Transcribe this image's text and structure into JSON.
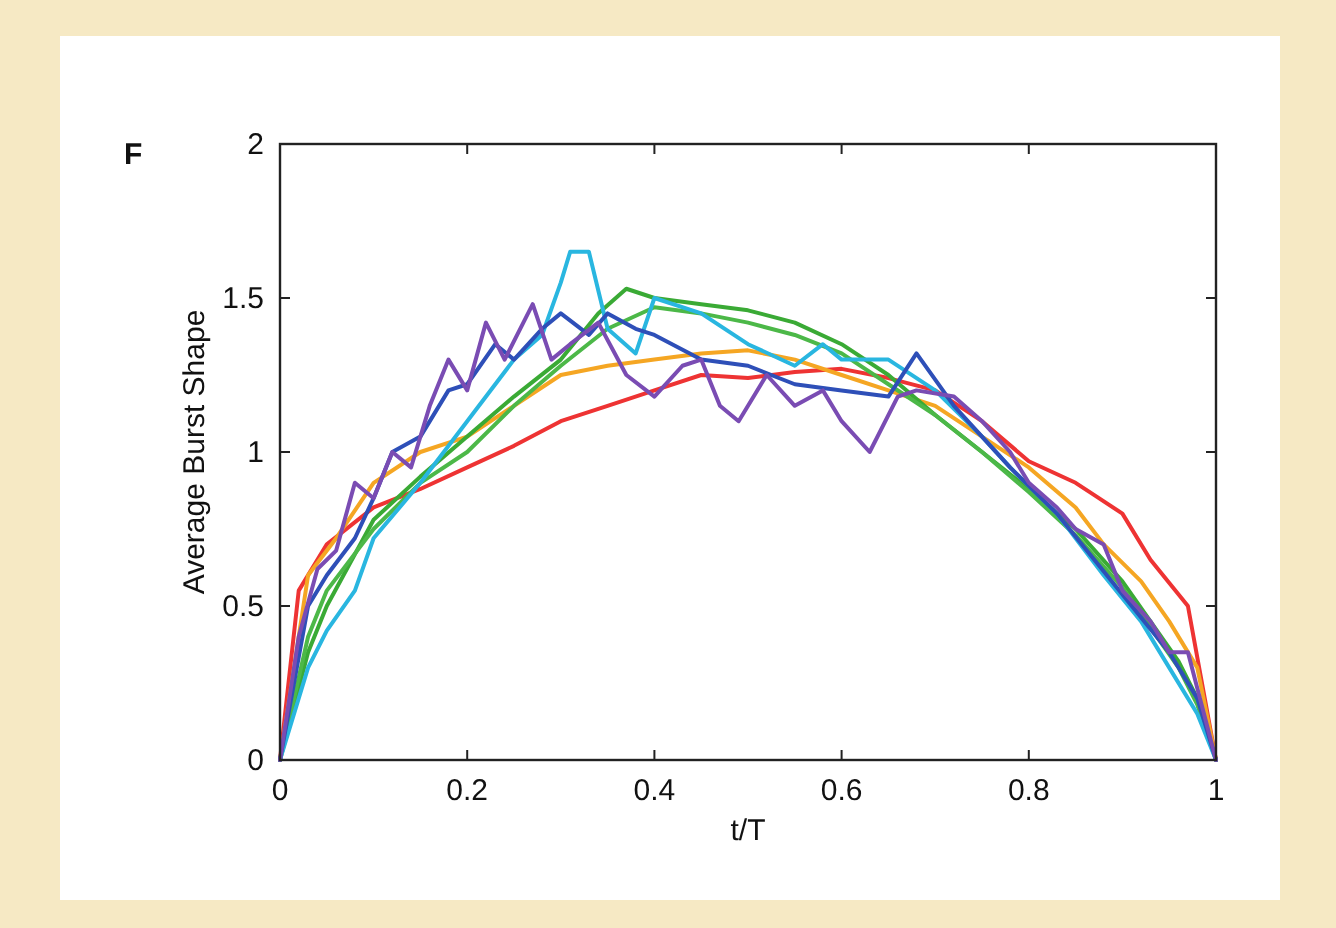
{
  "chart_data": {
    "type": "line",
    "title": "F",
    "xlabel": "t/T",
    "ylabel": "Average Burst Shape",
    "xlim": [
      0,
      1
    ],
    "xticks": [
      0,
      0.2,
      0.4,
      0.6,
      0.8,
      1
    ],
    "ylim": [
      0,
      2
    ],
    "yticks": [
      0,
      0.5,
      1,
      1.5,
      2
    ],
    "grid": false,
    "line_style": "solid",
    "marker": "none",
    "series": [
      {
        "color": "#ee3333",
        "x": [
          0,
          0.02,
          0.05,
          0.1,
          0.15,
          0.2,
          0.25,
          0.3,
          0.35,
          0.4,
          0.45,
          0.5,
          0.55,
          0.6,
          0.65,
          0.7,
          0.75,
          0.8,
          0.85,
          0.87,
          0.9,
          0.93,
          0.97,
          1
        ],
        "values": [
          0,
          0.55,
          0.7,
          0.82,
          0.88,
          0.95,
          1.02,
          1.1,
          1.15,
          1.2,
          1.25,
          1.24,
          1.26,
          1.27,
          1.24,
          1.2,
          1.1,
          0.97,
          0.9,
          0.86,
          0.8,
          0.65,
          0.5,
          0
        ]
      },
      {
        "color": "#f5a623",
        "x": [
          0,
          0.03,
          0.06,
          0.1,
          0.15,
          0.2,
          0.25,
          0.3,
          0.35,
          0.4,
          0.45,
          0.5,
          0.55,
          0.6,
          0.65,
          0.7,
          0.75,
          0.8,
          0.85,
          0.88,
          0.92,
          0.95,
          0.98,
          1
        ],
        "values": [
          0,
          0.6,
          0.72,
          0.9,
          1.0,
          1.05,
          1.15,
          1.25,
          1.28,
          1.3,
          1.32,
          1.33,
          1.3,
          1.25,
          1.2,
          1.15,
          1.05,
          0.95,
          0.82,
          0.7,
          0.58,
          0.45,
          0.3,
          0
        ]
      },
      {
        "color": "#3aaa35",
        "x": [
          0,
          0.03,
          0.05,
          0.1,
          0.15,
          0.2,
          0.25,
          0.3,
          0.34,
          0.37,
          0.4,
          0.45,
          0.5,
          0.55,
          0.6,
          0.65,
          0.7,
          0.75,
          0.8,
          0.85,
          0.9,
          0.93,
          0.96,
          0.98,
          1
        ],
        "values": [
          0,
          0.35,
          0.5,
          0.78,
          0.92,
          1.05,
          1.18,
          1.3,
          1.45,
          1.53,
          1.5,
          1.48,
          1.46,
          1.42,
          1.35,
          1.25,
          1.12,
          1.0,
          0.88,
          0.75,
          0.58,
          0.45,
          0.32,
          0.2,
          0
        ]
      },
      {
        "color": "#4cb848",
        "x": [
          0,
          0.03,
          0.05,
          0.1,
          0.15,
          0.2,
          0.25,
          0.3,
          0.35,
          0.4,
          0.45,
          0.5,
          0.55,
          0.6,
          0.65,
          0.7,
          0.75,
          0.8,
          0.85,
          0.9,
          0.93,
          0.96,
          0.98,
          1
        ],
        "values": [
          0,
          0.4,
          0.55,
          0.75,
          0.9,
          1.0,
          1.15,
          1.28,
          1.4,
          1.47,
          1.45,
          1.42,
          1.38,
          1.32,
          1.22,
          1.12,
          1.0,
          0.87,
          0.73,
          0.56,
          0.43,
          0.3,
          0.18,
          0
        ]
      },
      {
        "color": "#29b6e0",
        "x": [
          0,
          0.03,
          0.05,
          0.08,
          0.1,
          0.15,
          0.2,
          0.25,
          0.28,
          0.3,
          0.31,
          0.33,
          0.35,
          0.38,
          0.4,
          0.45,
          0.5,
          0.55,
          0.58,
          0.6,
          0.65,
          0.7,
          0.75,
          0.78,
          0.83,
          0.88,
          0.92,
          0.95,
          0.98,
          1
        ],
        "values": [
          0,
          0.3,
          0.42,
          0.55,
          0.72,
          0.9,
          1.1,
          1.3,
          1.38,
          1.55,
          1.65,
          1.65,
          1.4,
          1.32,
          1.5,
          1.45,
          1.35,
          1.28,
          1.35,
          1.3,
          1.3,
          1.2,
          1.05,
          0.95,
          0.8,
          0.6,
          0.45,
          0.3,
          0.15,
          0
        ]
      },
      {
        "color": "#2e4fb8",
        "x": [
          0,
          0.03,
          0.05,
          0.08,
          0.1,
          0.12,
          0.15,
          0.18,
          0.2,
          0.23,
          0.25,
          0.28,
          0.3,
          0.33,
          0.35,
          0.38,
          0.4,
          0.45,
          0.5,
          0.55,
          0.6,
          0.65,
          0.68,
          0.72,
          0.75,
          0.78,
          0.83,
          0.87,
          0.91,
          0.95,
          0.98,
          1
        ],
        "values": [
          0,
          0.5,
          0.6,
          0.72,
          0.85,
          1.0,
          1.05,
          1.2,
          1.22,
          1.35,
          1.3,
          1.4,
          1.45,
          1.38,
          1.45,
          1.4,
          1.38,
          1.3,
          1.28,
          1.22,
          1.2,
          1.18,
          1.32,
          1.15,
          1.05,
          0.95,
          0.8,
          0.65,
          0.5,
          0.35,
          0.2,
          0
        ]
      },
      {
        "color": "#7a4cb3",
        "x": [
          0,
          0.02,
          0.04,
          0.06,
          0.08,
          0.1,
          0.12,
          0.14,
          0.16,
          0.18,
          0.2,
          0.22,
          0.24,
          0.26,
          0.27,
          0.29,
          0.31,
          0.34,
          0.37,
          0.4,
          0.43,
          0.45,
          0.47,
          0.49,
          0.52,
          0.55,
          0.58,
          0.6,
          0.63,
          0.66,
          0.68,
          0.72,
          0.75,
          0.78,
          0.8,
          0.83,
          0.85,
          0.88,
          0.9,
          0.93,
          0.95,
          0.97,
          1
        ],
        "values": [
          0,
          0.4,
          0.62,
          0.68,
          0.9,
          0.85,
          1.0,
          0.95,
          1.15,
          1.3,
          1.2,
          1.42,
          1.3,
          1.42,
          1.48,
          1.3,
          1.35,
          1.42,
          1.25,
          1.18,
          1.28,
          1.3,
          1.15,
          1.1,
          1.25,
          1.15,
          1.2,
          1.1,
          1.0,
          1.18,
          1.2,
          1.18,
          1.1,
          1.0,
          0.9,
          0.82,
          0.75,
          0.7,
          0.55,
          0.45,
          0.35,
          0.35,
          0
        ]
      }
    ]
  }
}
